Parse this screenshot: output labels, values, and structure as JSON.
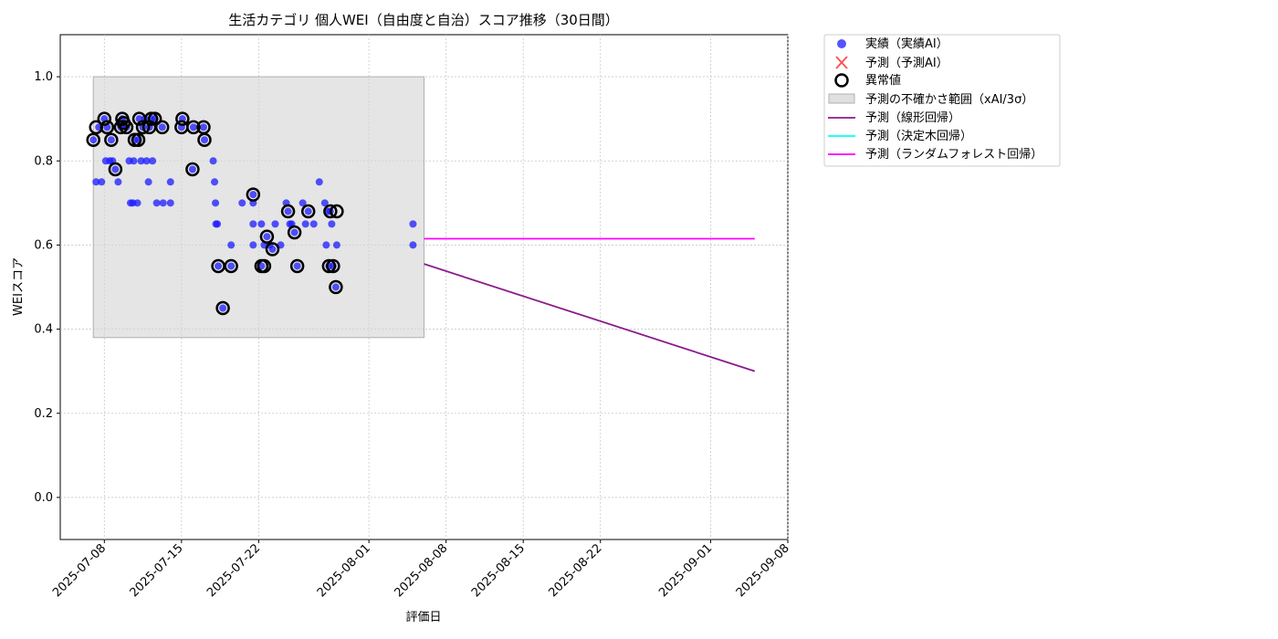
{
  "chart_data": {
    "type": "scatter",
    "title": "生活カテゴリ 個人WEI（自由度と自治）スコア推移（30日間）",
    "xlabel": "評価日",
    "ylabel": "WEIスコア",
    "xlim": [
      "2025-07-04",
      "2025-09-08"
    ],
    "ylim": [
      -0.1,
      1.1
    ],
    "x_ticks": [
      "2025-07-08",
      "2025-07-15",
      "2025-07-22",
      "2025-08-01",
      "2025-08-08",
      "2025-08-15",
      "2025-08-22",
      "2025-09-01",
      "2025-09-08"
    ],
    "y_ticks": [
      "0.0",
      "0.2",
      "0.4",
      "0.6",
      "0.8",
      "1.0"
    ],
    "grid": true,
    "legend_position": "outside-top-right",
    "colors": {
      "actual": "#1a1aff",
      "anomaly": "#000000",
      "uncertainty": "#d3d3d3",
      "linear": "#8b1a8b",
      "tree": "#00ffff",
      "forest": "#ff00ff"
    },
    "legend": {
      "actual": "実績（実績AI）",
      "predicted": "予測（予測AI）",
      "anomaly": "異常値",
      "uncertainty": "予測の不確かさ範囲（xAI/3σ）",
      "linear": "予測（線形回帰）",
      "tree": "予測（決定木回帰）",
      "forest": "予測（ランダムフォレスト回帰）"
    },
    "uncertainty_band": {
      "x": [
        "2025-07-07",
        "2025-08-06"
      ],
      "y": [
        0.38,
        1.0
      ]
    },
    "series": [
      {
        "name": "実績（実績AI）",
        "type": "scatter",
        "points": [
          [
            "2025-07-07T00:00",
            0.85
          ],
          [
            "2025-07-07T06:00",
            0.75
          ],
          [
            "2025-07-07T12:00",
            0.88
          ],
          [
            "2025-07-07T18:00",
            0.75
          ],
          [
            "2025-07-08T00:00",
            0.9
          ],
          [
            "2025-07-08T03:00",
            0.8
          ],
          [
            "2025-07-08T06:00",
            0.88
          ],
          [
            "2025-07-08T12:00",
            0.8
          ],
          [
            "2025-07-08T15:00",
            0.85
          ],
          [
            "2025-07-08T18:00",
            0.8
          ],
          [
            "2025-07-09T00:00",
            0.78
          ],
          [
            "2025-07-09T06:00",
            0.75
          ],
          [
            "2025-07-09T12:00",
            0.88
          ],
          [
            "2025-07-09T15:00",
            0.9
          ],
          [
            "2025-07-09T18:00",
            0.89
          ],
          [
            "2025-07-10T00:00",
            0.88
          ],
          [
            "2025-07-10T06:00",
            0.8
          ],
          [
            "2025-07-10T09:00",
            0.7
          ],
          [
            "2025-07-10T14:00",
            0.7
          ],
          [
            "2025-07-10T16:00",
            0.8
          ],
          [
            "2025-07-10T18:00",
            0.85
          ],
          [
            "2025-07-11T00:00",
            0.7
          ],
          [
            "2025-07-11T02:00",
            0.85
          ],
          [
            "2025-07-11T04:00",
            0.9
          ],
          [
            "2025-07-11T08:00",
            0.8
          ],
          [
            "2025-07-11T12:00",
            0.88
          ],
          [
            "2025-07-11T16:00",
            0.9
          ],
          [
            "2025-07-11T20:00",
            0.8
          ],
          [
            "2025-07-12T00:00",
            0.75
          ],
          [
            "2025-07-12T02:00",
            0.88
          ],
          [
            "2025-07-12T06:00",
            0.9
          ],
          [
            "2025-07-12T09:00",
            0.8
          ],
          [
            "2025-07-12T14:00",
            0.9
          ],
          [
            "2025-07-12T18:00",
            0.7
          ],
          [
            "2025-07-13T06:00",
            0.88
          ],
          [
            "2025-07-13T08:00",
            0.7
          ],
          [
            "2025-07-14T00:00",
            0.75
          ],
          [
            "2025-07-14T00:00",
            0.7
          ],
          [
            "2025-07-15T00:00",
            0.88
          ],
          [
            "2025-07-15T02:00",
            0.9
          ],
          [
            "2025-07-16T00:00",
            0.78
          ],
          [
            "2025-07-16T02:00",
            0.88
          ],
          [
            "2025-07-17T00:00",
            0.88
          ],
          [
            "2025-07-17T02:00",
            0.85
          ],
          [
            "2025-07-17T21:00",
            0.8
          ],
          [
            "2025-07-18T00:00",
            0.75
          ],
          [
            "2025-07-18T02:00",
            0.7
          ],
          [
            "2025-07-18T03:00",
            0.65
          ],
          [
            "2025-07-18T06:00",
            0.65
          ],
          [
            "2025-07-18T08:00",
            0.55
          ],
          [
            "2025-07-18T18:00",
            0.45
          ],
          [
            "2025-07-19T12:00",
            0.55
          ],
          [
            "2025-07-19T12:00",
            0.6
          ],
          [
            "2025-07-20T12:00",
            0.7
          ],
          [
            "2025-07-21T12:00",
            0.7
          ],
          [
            "2025-07-21T12:00",
            0.65
          ],
          [
            "2025-07-21T12:00",
            0.72
          ],
          [
            "2025-07-21T12:00",
            0.6
          ],
          [
            "2025-07-22T06:00",
            0.65
          ],
          [
            "2025-07-22T06:00",
            0.55
          ],
          [
            "2025-07-22T12:00",
            0.6
          ],
          [
            "2025-07-22T18:00",
            0.62
          ],
          [
            "2025-07-23T00:00",
            0.6
          ],
          [
            "2025-07-23T06:00",
            0.59
          ],
          [
            "2025-07-23T12:00",
            0.65
          ],
          [
            "2025-07-24T00:00",
            0.6
          ],
          [
            "2025-07-24T12:00",
            0.7
          ],
          [
            "2025-07-24T16:00",
            0.68
          ],
          [
            "2025-07-24T20:00",
            0.65
          ],
          [
            "2025-07-25T00:00",
            0.65
          ],
          [
            "2025-07-25T06:00",
            0.63
          ],
          [
            "2025-07-25T12:00",
            0.55
          ],
          [
            "2025-07-26T00:00",
            0.7
          ],
          [
            "2025-07-26T06:00",
            0.65
          ],
          [
            "2025-07-26T12:00",
            0.68
          ],
          [
            "2025-07-27T00:00",
            0.65
          ],
          [
            "2025-07-27T12:00",
            0.75
          ],
          [
            "2025-07-28T00:00",
            0.7
          ],
          [
            "2025-07-28T03:00",
            0.6
          ],
          [
            "2025-07-28T06:00",
            0.68
          ],
          [
            "2025-07-28T09:00",
            0.55
          ],
          [
            "2025-07-28T12:00",
            0.68
          ],
          [
            "2025-07-28T15:00",
            0.65
          ],
          [
            "2025-07-28T18:00",
            0.55
          ],
          [
            "2025-07-29T00:00",
            0.5
          ],
          [
            "2025-07-29T02:00",
            0.6
          ],
          [
            "2025-08-05T00:00",
            0.65
          ],
          [
            "2025-08-05T00:00",
            0.6
          ]
        ]
      },
      {
        "name": "異常値",
        "type": "scatter",
        "points": [
          [
            "2025-07-07T00:00",
            0.85
          ],
          [
            "2025-07-07T06:00",
            0.88
          ],
          [
            "2025-07-08T00:00",
            0.9
          ],
          [
            "2025-07-08T06:00",
            0.88
          ],
          [
            "2025-07-08T15:00",
            0.85
          ],
          [
            "2025-07-09T00:00",
            0.78
          ],
          [
            "2025-07-09T12:00",
            0.88
          ],
          [
            "2025-07-09T15:00",
            0.9
          ],
          [
            "2025-07-09T18:00",
            0.89
          ],
          [
            "2025-07-10T00:00",
            0.88
          ],
          [
            "2025-07-10T18:00",
            0.85
          ],
          [
            "2025-07-11T02:00",
            0.85
          ],
          [
            "2025-07-11T04:00",
            0.9
          ],
          [
            "2025-07-11T12:00",
            0.88
          ],
          [
            "2025-07-12T02:00",
            0.88
          ],
          [
            "2025-07-12T06:00",
            0.9
          ],
          [
            "2025-07-12T14:00",
            0.9
          ],
          [
            "2025-07-13T06:00",
            0.88
          ],
          [
            "2025-07-15T00:00",
            0.88
          ],
          [
            "2025-07-15T02:00",
            0.9
          ],
          [
            "2025-07-16T00:00",
            0.78
          ],
          [
            "2025-07-16T02:00",
            0.88
          ],
          [
            "2025-07-17T00:00",
            0.88
          ],
          [
            "2025-07-17T02:00",
            0.85
          ],
          [
            "2025-07-18T08:00",
            0.55
          ],
          [
            "2025-07-18T18:00",
            0.45
          ],
          [
            "2025-07-19T12:00",
            0.55
          ],
          [
            "2025-07-21T12:00",
            0.72
          ],
          [
            "2025-07-22T06:00",
            0.55
          ],
          [
            "2025-07-22T12:00",
            0.55
          ],
          [
            "2025-07-22T18:00",
            0.62
          ],
          [
            "2025-07-23T06:00",
            0.59
          ],
          [
            "2025-07-24T16:00",
            0.68
          ],
          [
            "2025-07-25T06:00",
            0.63
          ],
          [
            "2025-07-25T12:00",
            0.55
          ],
          [
            "2025-07-26T12:00",
            0.68
          ],
          [
            "2025-07-28T09:00",
            0.55
          ],
          [
            "2025-07-28T12:00",
            0.68
          ],
          [
            "2025-07-28T18:00",
            0.55
          ],
          [
            "2025-07-29T00:00",
            0.5
          ],
          [
            "2025-07-29T02:00",
            0.68
          ]
        ]
      },
      {
        "name": "予測（線形回帰）",
        "type": "line",
        "points": [
          [
            "2025-08-06",
            0.555
          ],
          [
            "2025-09-05",
            0.3
          ]
        ]
      },
      {
        "name": "予測（ランダムフォレスト回帰）",
        "type": "line",
        "points": [
          [
            "2025-08-06",
            0.615
          ],
          [
            "2025-09-05",
            0.615
          ]
        ]
      }
    ]
  }
}
